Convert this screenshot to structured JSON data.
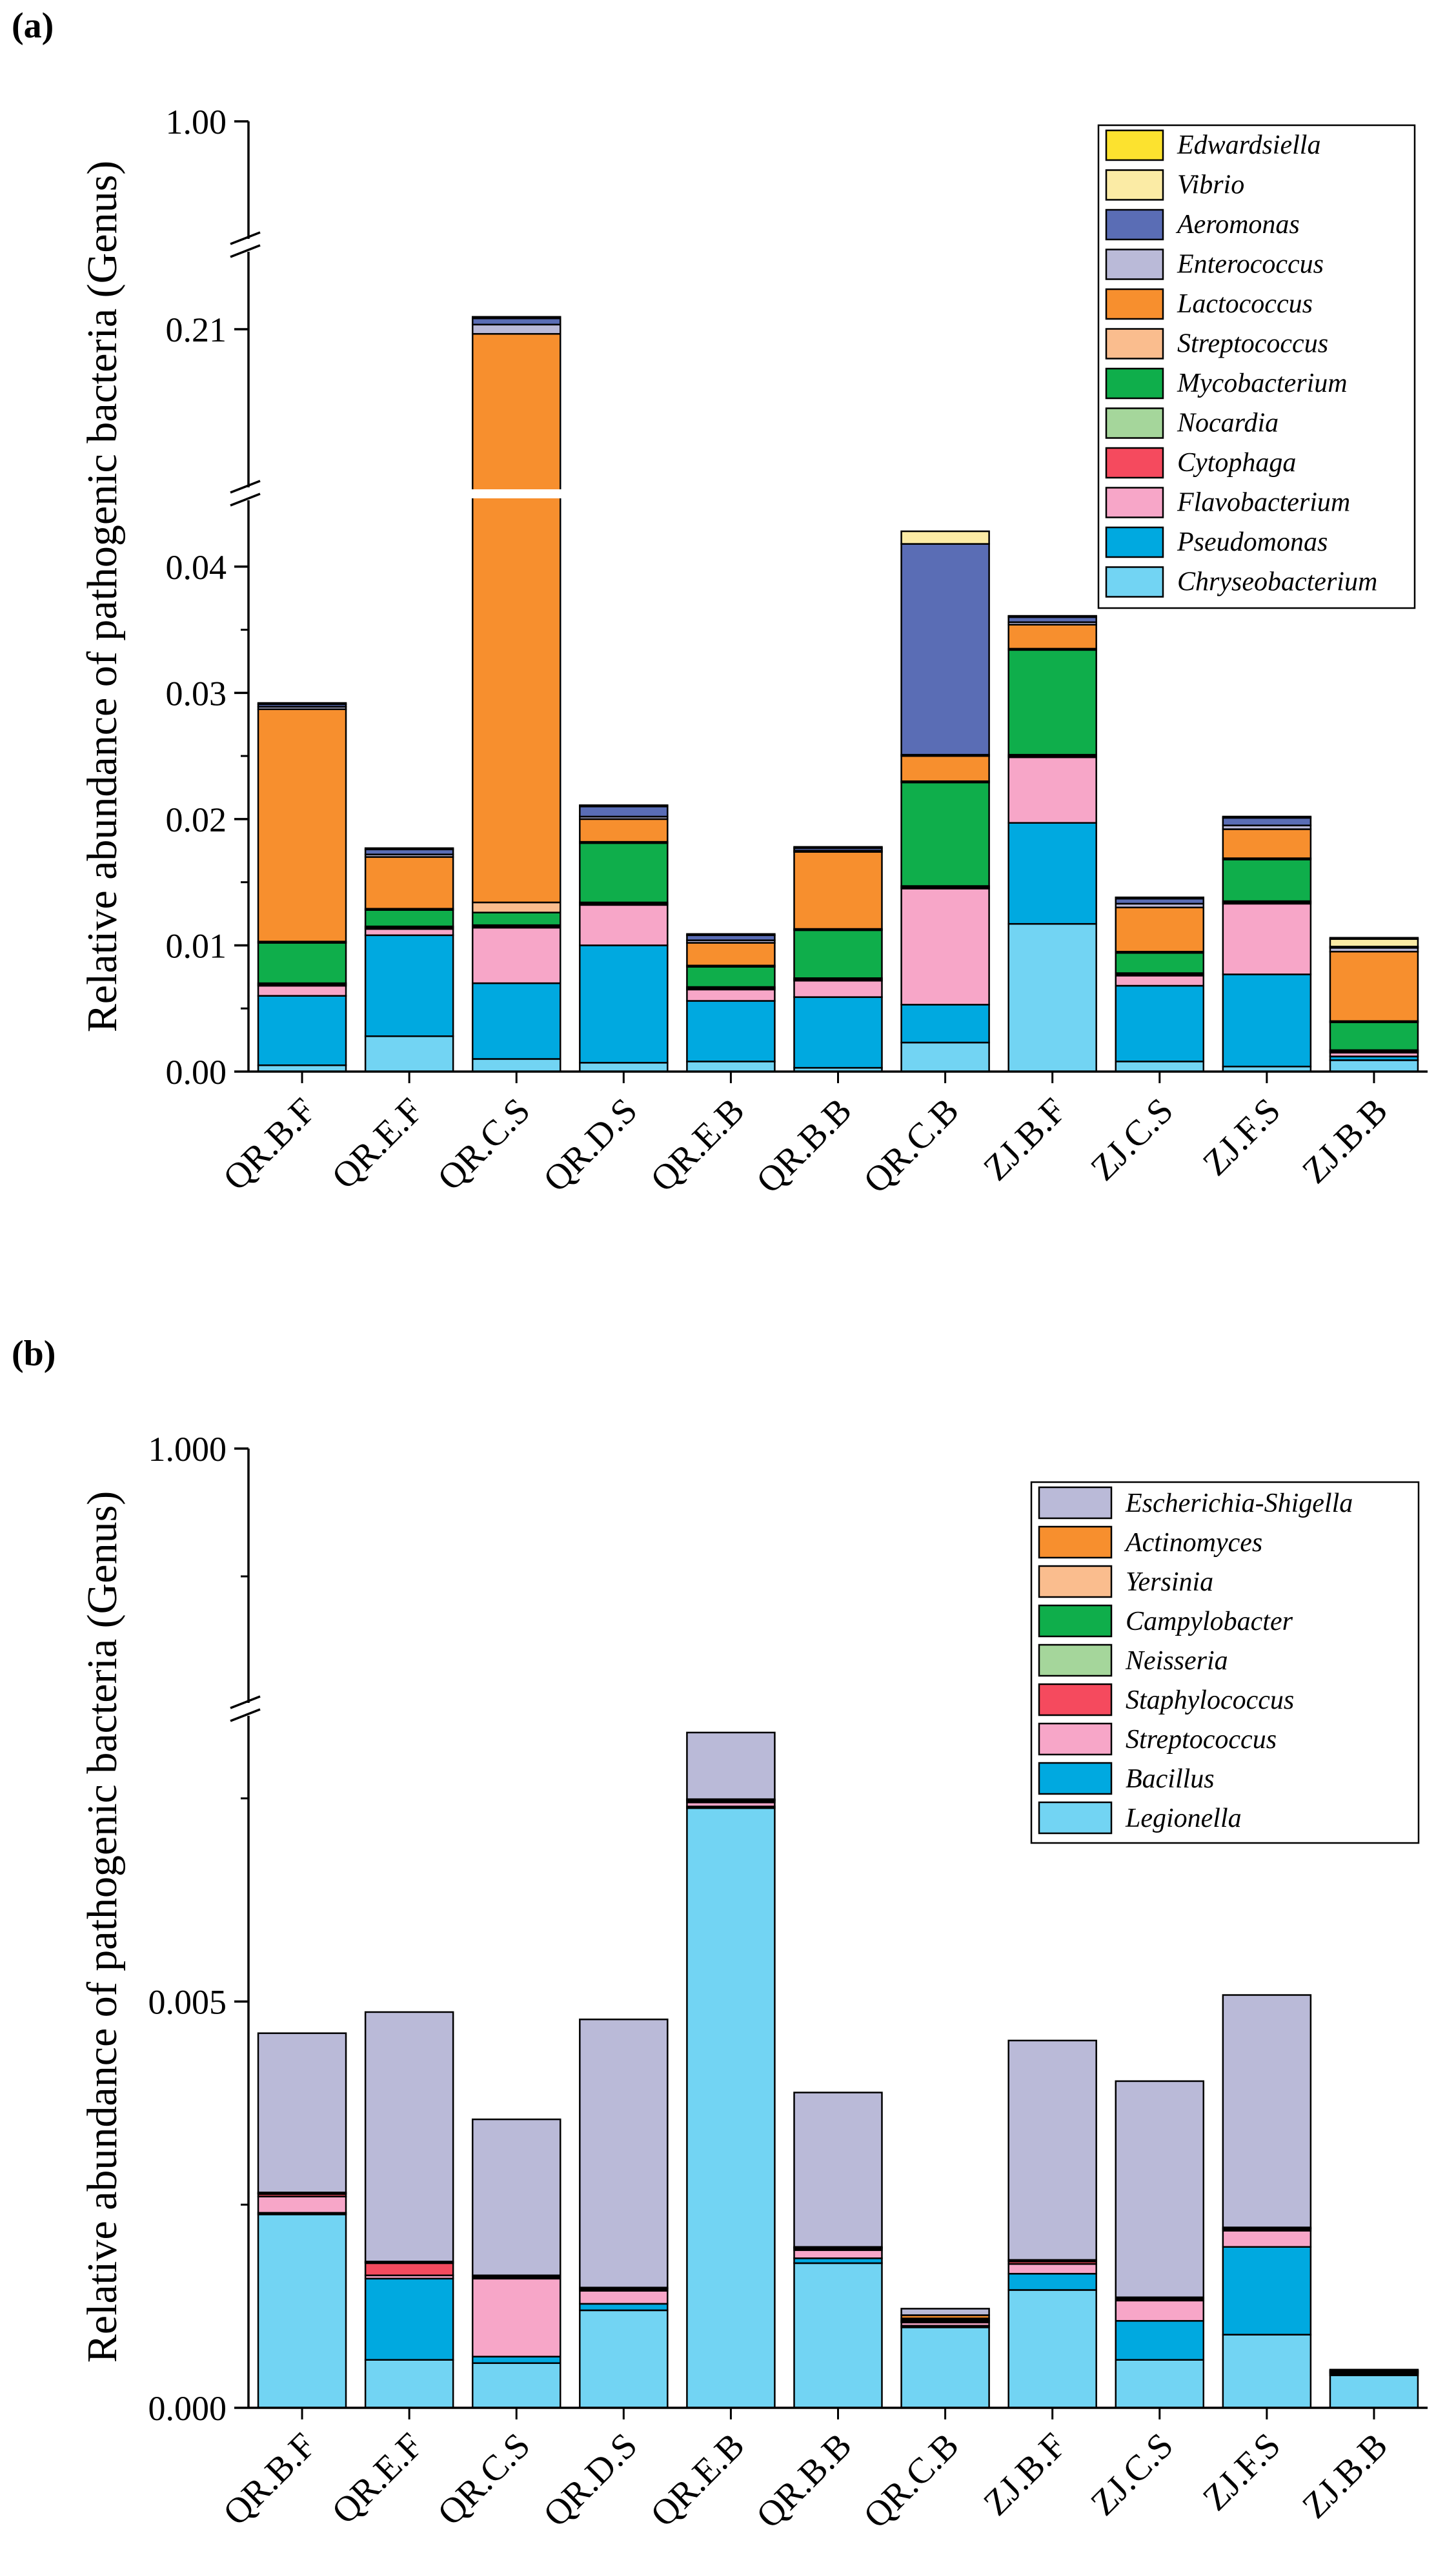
{
  "chart_data": [
    {
      "panel_label": "(a)",
      "type": "bar",
      "stacked": true,
      "ylabel": "Relative abundance of pathogenic bacteria (Genus)",
      "y_axis_breaks": [
        [
          0.045,
          0.2
        ],
        [
          0.215,
          0.995
        ]
      ],
      "y_tick_labels": [
        "0.00",
        "0.01",
        "0.02",
        "0.03",
        "0.04",
        "0.21",
        "1.00"
      ],
      "categories": [
        "QR.B.F",
        "QR.E.F",
        "QR.C.S",
        "QR.D.S",
        "QR.E.B",
        "QR.B.B",
        "QR.C.B",
        "ZJ.B.F",
        "ZJ.C.S",
        "ZJ.F.S",
        "ZJ.B.B"
      ],
      "legend_position": "top-right",
      "series": [
        {
          "name": "Chryseobacterium",
          "color": "#72D4F3",
          "values": [
            0.0005,
            0.0028,
            0.001,
            0.0007,
            0.0008,
            0.0003,
            0.0023,
            0.0117,
            0.0008,
            0.0004,
            0.0009
          ]
        },
        {
          "name": "Pseudomonas",
          "color": "#00A9E0",
          "values": [
            0.0055,
            0.008,
            0.006,
            0.0093,
            0.0048,
            0.0056,
            0.003,
            0.008,
            0.006,
            0.0073,
            0.0003
          ]
        },
        {
          "name": "Flavobacterium",
          "color": "#F7A6C8",
          "values": [
            0.0008,
            0.0005,
            0.0044,
            0.0032,
            0.0009,
            0.0013,
            0.0092,
            0.0052,
            0.0008,
            0.0056,
            0.0003
          ]
        },
        {
          "name": "Cytophaga",
          "color": "#F54A5E",
          "values": [
            0.0001,
            0.0001,
            0.0001,
            0.0001,
            0.0001,
            0.0001,
            0.0001,
            0.0001,
            0.0001,
            0.0001,
            0.0001
          ]
        },
        {
          "name": "Nocardia",
          "color": "#A5D69B",
          "values": [
            0.0001,
            0.0001,
            0.0001,
            0.0001,
            0.0001,
            0.0001,
            0.0001,
            0.0001,
            0.0001,
            0.0001,
            0.0001
          ]
        },
        {
          "name": "Mycobacterium",
          "color": "#0FAE4B",
          "values": [
            0.0032,
            0.0013,
            0.001,
            0.0047,
            0.0016,
            0.0038,
            0.0082,
            0.0083,
            0.0016,
            0.0033,
            0.0022
          ]
        },
        {
          "name": "Streptococcus",
          "color": "#FABD8E",
          "values": [
            0.0001,
            0.0001,
            0.0008,
            0.0001,
            0.0001,
            0.0001,
            0.0001,
            0.0001,
            0.0001,
            0.0001,
            0.0001
          ]
        },
        {
          "name": "Lactococcus",
          "color": "#F78F2E",
          "values": [
            0.0184,
            0.0041,
            0.1963,
            0.0018,
            0.0018,
            0.0061,
            0.002,
            0.0019,
            0.0035,
            0.0023,
            0.0055
          ]
        },
        {
          "name": "Enterococcus",
          "color": "#BABAD8",
          "values": [
            0.0002,
            0.0002,
            0.0006,
            0.0002,
            0.0002,
            0.0001,
            0.0001,
            0.0002,
            0.0003,
            0.0003,
            0.0003
          ]
        },
        {
          "name": "Aeromonas",
          "color": "#5A6DB5",
          "values": [
            0.0002,
            0.0004,
            0.0004,
            0.0008,
            0.0004,
            0.0002,
            0.0167,
            0.0004,
            0.0004,
            0.0006,
            0.0001
          ]
        },
        {
          "name": "Vibrio",
          "color": "#FBEBA5",
          "values": [
            0.0001,
            0.0001,
            0.0001,
            0.0001,
            0.0001,
            0.0001,
            0.001,
            0.0001,
            0.0001,
            0.0001,
            0.0006
          ]
        },
        {
          "name": "Edwardsiella",
          "color": "#FCE22F",
          "values": [
            0.0,
            0.0,
            0.0,
            0.0,
            0.0,
            0.0,
            0.0,
            0.0,
            0.0,
            0.0,
            0.0001
          ]
        }
      ]
    },
    {
      "panel_label": "(b)",
      "type": "bar",
      "stacked": true,
      "ylabel": "Relative abundance of pathogenic bacteria (Genus)",
      "y_axis_breaks": [
        [
          0.0085,
          0.99
        ]
      ],
      "y_tick_labels": [
        "0.000",
        "0.005",
        "1.000"
      ],
      "categories": [
        "QR.B.F",
        "QR.E.F",
        "QR.C.S",
        "QR.D.S",
        "QR.E.B",
        "QR.B.B",
        "QR.C.B",
        "ZJ.B.F",
        "ZJ.C.S",
        "ZJ.F.S",
        "ZJ.B.B"
      ],
      "legend_position": "top-right",
      "series": [
        {
          "name": "Legionella",
          "color": "#72D4F3",
          "values": [
            0.00238,
            0.00059,
            0.00055,
            0.0012,
            0.00738,
            0.00178,
            0.00099,
            0.00145,
            0.00059,
            0.0009,
            0.0004
          ]
        },
        {
          "name": "Bacillus",
          "color": "#00A9E0",
          "values": [
            2e-05,
            0.001,
            8e-05,
            8e-05,
            2e-05,
            6e-05,
            2e-05,
            0.0002,
            0.00048,
            0.00108,
            2e-05
          ]
        },
        {
          "name": "Streptococcus",
          "color": "#F7A6C8",
          "values": [
            0.0002,
            4e-05,
            0.00096,
            0.00016,
            5e-05,
            0.0001,
            4e-05,
            0.00012,
            0.00025,
            0.0002,
            1e-05
          ]
        },
        {
          "name": "Staphylococcus",
          "color": "#F54A5E",
          "values": [
            3e-05,
            0.00015,
            2e-05,
            2e-05,
            2e-05,
            2e-05,
            1e-05,
            3e-05,
            2e-05,
            2e-05,
            1e-05
          ]
        },
        {
          "name": "Neisseria",
          "color": "#A5D69B",
          "values": [
            1e-05,
            1e-05,
            1e-05,
            1e-05,
            1e-05,
            1e-05,
            1e-05,
            1e-05,
            1e-05,
            1e-05,
            1e-05
          ]
        },
        {
          "name": "Campylobacter",
          "color": "#0FAE4B",
          "values": [
            1e-05,
            1e-05,
            1e-05,
            1e-05,
            1e-05,
            1e-05,
            1e-05,
            1e-05,
            1e-05,
            1e-05,
            1e-05
          ]
        },
        {
          "name": "Yersinia",
          "color": "#FABD8E",
          "values": [
            0.0,
            0.0,
            0.0,
            0.0,
            0.0,
            0.0,
            2e-05,
            0.0,
            0.0,
            0.0,
            0.0
          ]
        },
        {
          "name": "Actinomyces",
          "color": "#F78F2E",
          "values": [
            0.0,
            0.0,
            0.0,
            0.0,
            0.0,
            0.0,
            4e-05,
            0.0,
            0.0,
            0.0,
            0.0
          ]
        },
        {
          "name": "Escherichia-Shigella",
          "color": "#BABAD8",
          "values": [
            0.00196,
            0.00307,
            0.00192,
            0.0033,
            0.00082,
            0.0019,
            8e-05,
            0.0027,
            0.00266,
            0.00286,
            1e-05
          ]
        }
      ]
    }
  ]
}
